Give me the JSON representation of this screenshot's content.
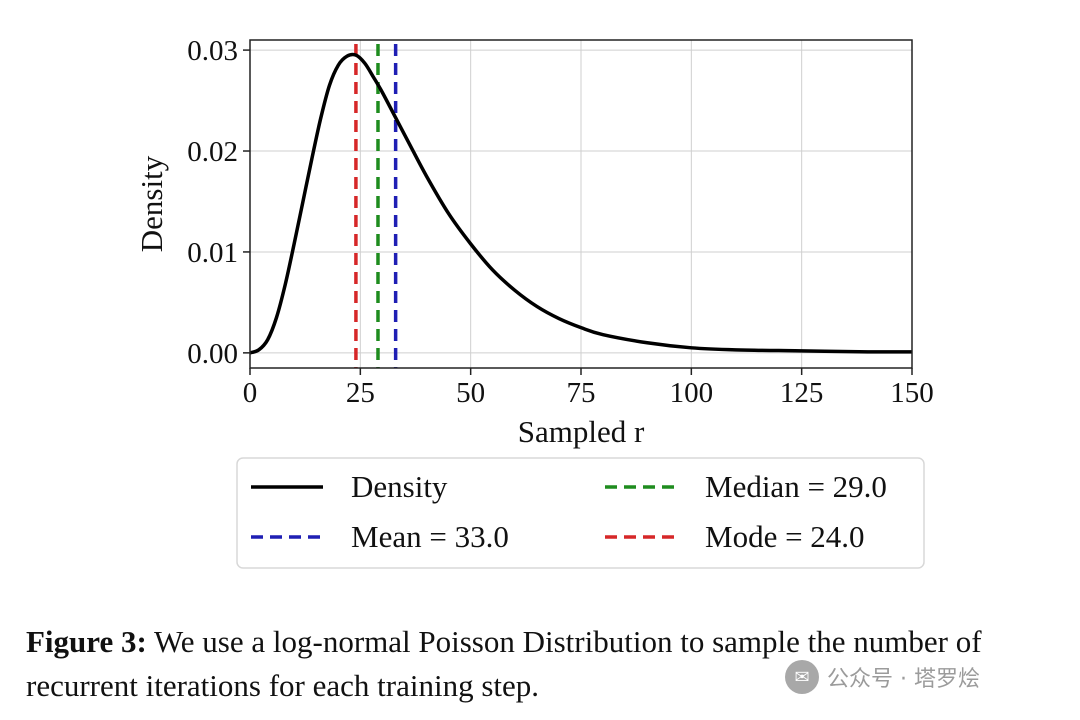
{
  "chart_data": {
    "type": "line",
    "xlabel": "Sampled r",
    "ylabel": "Density",
    "xlim": [
      0,
      150
    ],
    "ylim": [
      -0.0015,
      0.031
    ],
    "xticks": [
      0,
      25,
      50,
      75,
      100,
      125,
      150
    ],
    "yticks": [
      0.0,
      0.01,
      0.02,
      0.03
    ],
    "ytick_labels": [
      "0.00",
      "0.01",
      "0.02",
      "0.03"
    ],
    "grid": true,
    "series": [
      {
        "name": "Density",
        "color": "#000000",
        "style": "solid",
        "x": [
          0,
          2,
          4,
          6,
          8,
          10,
          12,
          14,
          16,
          18,
          20,
          22,
          24,
          26,
          28,
          30,
          33,
          36,
          40,
          45,
          50,
          55,
          60,
          65,
          70,
          75,
          80,
          90,
          100,
          110,
          125,
          140,
          150
        ],
        "y": [
          0.0,
          0.0003,
          0.0013,
          0.0035,
          0.0068,
          0.0108,
          0.015,
          0.0192,
          0.0232,
          0.0265,
          0.0285,
          0.0294,
          0.0295,
          0.0287,
          0.0273,
          0.0258,
          0.0233,
          0.0208,
          0.0175,
          0.0138,
          0.0108,
          0.0082,
          0.0062,
          0.0046,
          0.0034,
          0.0025,
          0.0018,
          0.001,
          0.0005,
          0.0003,
          0.0002,
          0.0001,
          0.0001
        ]
      }
    ],
    "vlines": [
      {
        "name": "Mean = 33.0",
        "x": 33.0,
        "color": "#1f1fb4"
      },
      {
        "name": "Median = 29.0",
        "x": 29.0,
        "color": "#1e8c1e"
      },
      {
        "name": "Mode = 24.0",
        "x": 24.0,
        "color": "#d62728"
      }
    ],
    "legend": {
      "position": "bottom",
      "entries": [
        {
          "label": "Density",
          "color": "#000000",
          "style": "solid"
        },
        {
          "label": "Median = 29.0",
          "color": "#1e8c1e",
          "style": "dashed"
        },
        {
          "label": "Mean = 33.0",
          "color": "#1f1fb4",
          "style": "dashed"
        },
        {
          "label": "Mode = 24.0",
          "color": "#d62728",
          "style": "dashed"
        }
      ]
    }
  },
  "caption": {
    "label": "Figure 3:",
    "text": " We use a log-normal Poisson Distribution to sample the number of recurrent iterations for each training step."
  },
  "watermark": {
    "text": "公众号 · 塔罗烩"
  }
}
